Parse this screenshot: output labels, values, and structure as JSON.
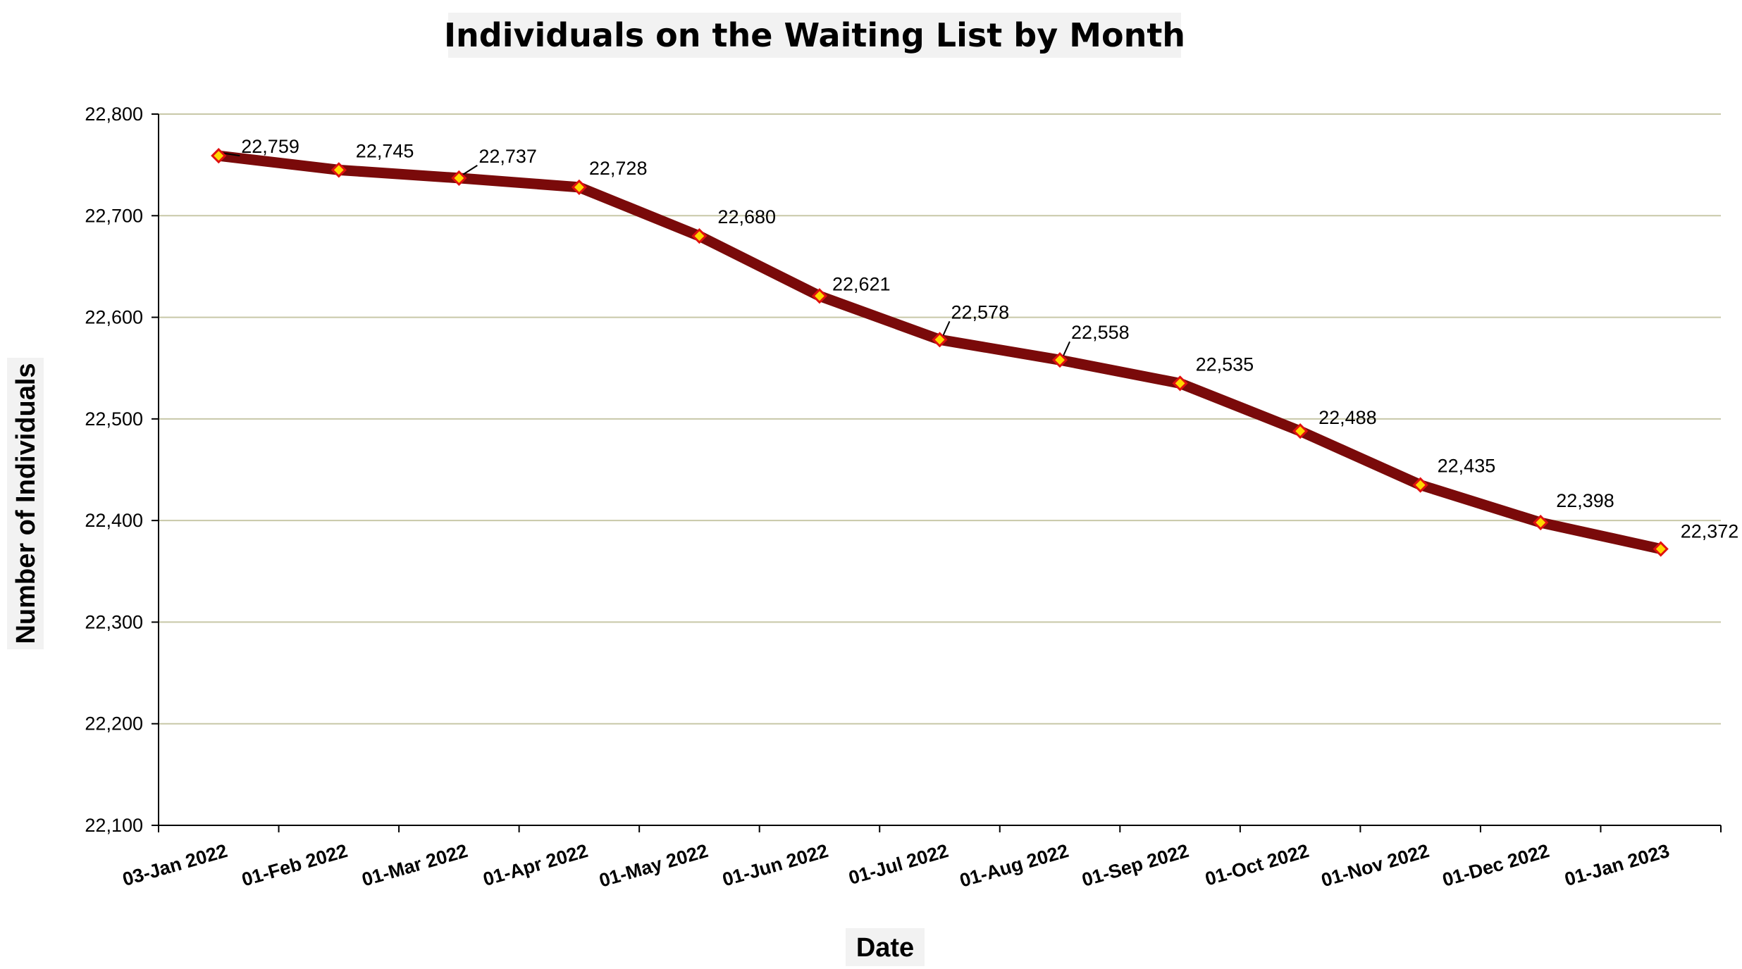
{
  "chart_data": {
    "type": "line",
    "title": "Individuals on the Waiting List by Month",
    "xlabel": "Date",
    "ylabel": "Number of Individuals",
    "categories": [
      "03-Jan 2022",
      "01-Feb 2022",
      "01-Mar 2022",
      "01-Apr 2022",
      "01-May 2022",
      "01-Jun 2022",
      "01-Jul 2022",
      "01-Aug 2022",
      "01-Sep 2022",
      "01-Oct 2022",
      "01-Nov 2022",
      "01-Dec 2022",
      "01-Jan 2023"
    ],
    "series": [
      {
        "values": [
          22759,
          22745,
          22737,
          22728,
          22680,
          22621,
          22578,
          22558,
          22535,
          22488,
          22435,
          22398,
          22372
        ],
        "labels": [
          "22,759",
          "22,745",
          "22,737",
          "22,728",
          "22,680",
          "22,621",
          "22,578",
          "22,558",
          "22,535",
          "22,488",
          "22,435",
          "22,398",
          "22,372"
        ]
      }
    ],
    "ylim": [
      22100,
      22800
    ],
    "yticks": [
      "22,100",
      "22,200",
      "22,300",
      "22,400",
      "22,500",
      "22,600",
      "22,700",
      "22,800"
    ],
    "grid": true,
    "legend": "none",
    "colors": {
      "line": "#7a0a0a",
      "marker_fill": "#ffd700",
      "marker_edge": "#e01010",
      "grid": "#c8c8a8",
      "title_box": "#f2f2f2"
    }
  }
}
